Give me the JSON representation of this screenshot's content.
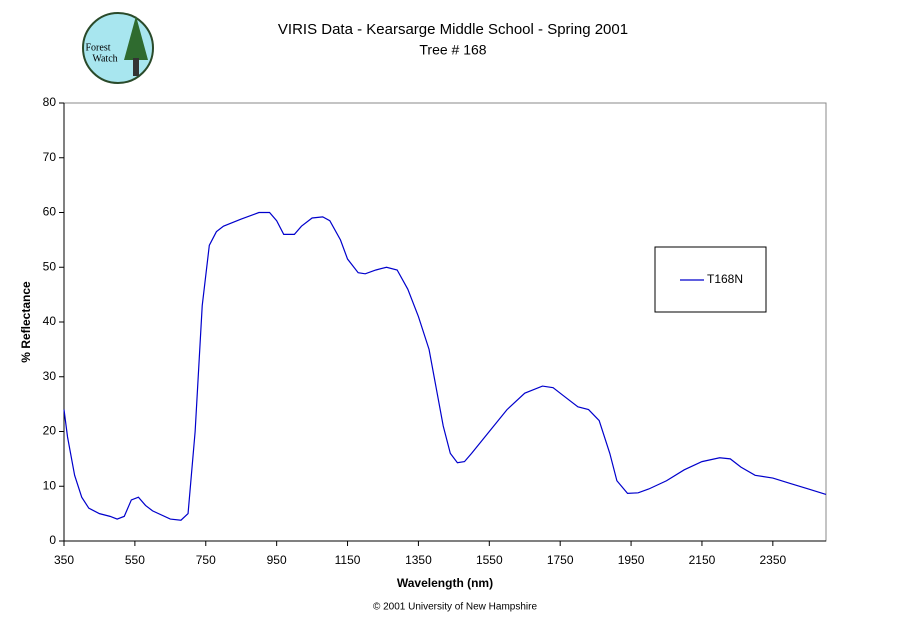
{
  "logo": {
    "lines": [
      "Forest",
      "Watch"
    ]
  },
  "chart_data": {
    "type": "line",
    "title": "VIRIS Data - Kearsarge Middle School - Spring 2001",
    "subtitle": "Tree # 168",
    "x_label": "Wavelength (nm)",
    "y_label": "% Reflectance",
    "footnote": "© 2001 University of New Hampshire",
    "xlim": [
      350,
      2500
    ],
    "xticks": [
      350,
      550,
      750,
      950,
      1150,
      1350,
      1550,
      1750,
      1950,
      2150,
      2350
    ],
    "ylim": [
      0,
      80
    ],
    "yticks": [
      0,
      10,
      20,
      30,
      40,
      50,
      60,
      70,
      80
    ],
    "legend": "right",
    "x": [
      350,
      360,
      380,
      400,
      420,
      450,
      480,
      500,
      520,
      540,
      560,
      580,
      600,
      650,
      680,
      700,
      720,
      740,
      760,
      780,
      800,
      850,
      900,
      930,
      950,
      970,
      1000,
      1020,
      1050,
      1080,
      1100,
      1130,
      1150,
      1180,
      1200,
      1230,
      1260,
      1290,
      1320,
      1350,
      1380,
      1400,
      1420,
      1440,
      1460,
      1480,
      1500,
      1550,
      1600,
      1650,
      1700,
      1730,
      1760,
      1800,
      1830,
      1860,
      1890,
      1910,
      1940,
      1970,
      2000,
      2050,
      2100,
      2150,
      2200,
      2230,
      2260,
      2300,
      2350,
      2400,
      2450,
      2500
    ],
    "series": [
      {
        "name": "T168N",
        "color": "#0000cc",
        "values": [
          24,
          19,
          12,
          8,
          6,
          5,
          4.5,
          4,
          4.5,
          7.5,
          8,
          6.5,
          5.5,
          4,
          3.8,
          5,
          20,
          43,
          54,
          56.5,
          57.5,
          58.8,
          60,
          60,
          58.5,
          56,
          56,
          57.5,
          59,
          59.2,
          58.5,
          55,
          51.5,
          49,
          48.8,
          49.5,
          50,
          49.5,
          46,
          41,
          35,
          28,
          21,
          16,
          14.3,
          14.5,
          16,
          20,
          24,
          27,
          28.3,
          28,
          26.5,
          24.5,
          24,
          22,
          16,
          11,
          8.7,
          8.8,
          9.5,
          11,
          13,
          14.5,
          15.2,
          15,
          13.5,
          12,
          11.5,
          10.5,
          9.5,
          8.5
        ]
      }
    ]
  }
}
